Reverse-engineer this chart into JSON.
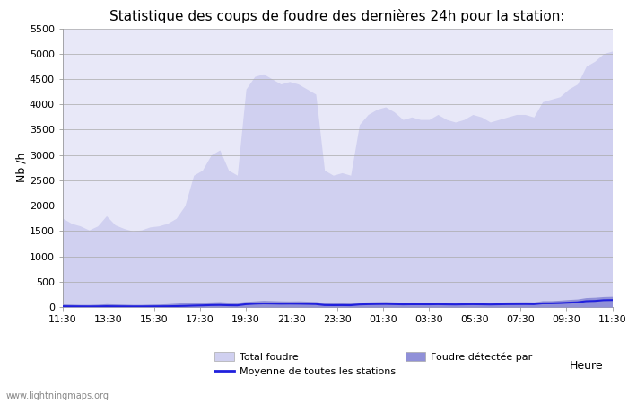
{
  "title": "Statistique des coups de foudre des dernières 24h pour la station:",
  "xlabel": "Heure",
  "ylabel": "Nb /h",
  "ylim": [
    0,
    5500
  ],
  "yticks": [
    0,
    500,
    1000,
    1500,
    2000,
    2500,
    3000,
    3500,
    4000,
    4500,
    5000,
    5500
  ],
  "xtick_labels": [
    "11:30",
    "13:30",
    "15:30",
    "17:30",
    "19:30",
    "21:30",
    "23:30",
    "01:30",
    "03:30",
    "05:30",
    "07:30",
    "09:30",
    "11:30"
  ],
  "background_color": "#ffffff",
  "plot_bg_color": "#e8e8f8",
  "fill_color_total": "#d0d0f0",
  "fill_color_detected": "#9090d8",
  "line_color_moyenne": "#2020dd",
  "watermark": "www.lightningmaps.org",
  "total_foudre_values": [
    1750,
    1650,
    1600,
    1520,
    1600,
    1800,
    1620,
    1550,
    1500,
    1520,
    1580,
    1600,
    1650,
    1750,
    2000,
    2600,
    2700,
    3000,
    3100,
    2700,
    2600,
    4300,
    4550,
    4600,
    4500,
    4400,
    4450,
    4400,
    4300,
    4200,
    2700,
    2600,
    2650,
    2600,
    3600,
    3800,
    3900,
    3950,
    3850,
    3700,
    3750,
    3700,
    3700,
    3800,
    3700,
    3650,
    3700,
    3800,
    3750,
    3650,
    3700,
    3750,
    3800,
    3800,
    3750,
    4050,
    4100,
    4150,
    4300,
    4400,
    4750,
    4850,
    5000,
    5050
  ],
  "detected_foudre_values": [
    60,
    55,
    50,
    50,
    55,
    65,
    60,
    55,
    50,
    50,
    55,
    58,
    65,
    75,
    85,
    90,
    95,
    100,
    105,
    95,
    92,
    110,
    120,
    130,
    125,
    120,
    118,
    120,
    115,
    108,
    85,
    82,
    82,
    80,
    95,
    100,
    105,
    108,
    100,
    95,
    98,
    97,
    96,
    98,
    95,
    93,
    96,
    98,
    95,
    92,
    96,
    100,
    102,
    103,
    100,
    125,
    125,
    135,
    148,
    158,
    185,
    192,
    205,
    210
  ],
  "moyenne_values": [
    15,
    14,
    13,
    12,
    13,
    16,
    14,
    13,
    12,
    12,
    13,
    14,
    15,
    18,
    22,
    28,
    32,
    38,
    40,
    35,
    33,
    55,
    65,
    70,
    68,
    65,
    66,
    65,
    62,
    58,
    38,
    36,
    37,
    35,
    50,
    55,
    58,
    60,
    56,
    52,
    54,
    54,
    53,
    55,
    52,
    50,
    53,
    55,
    53,
    50,
    53,
    56,
    57,
    58,
    56,
    72,
    73,
    78,
    86,
    93,
    115,
    120,
    135,
    138
  ]
}
